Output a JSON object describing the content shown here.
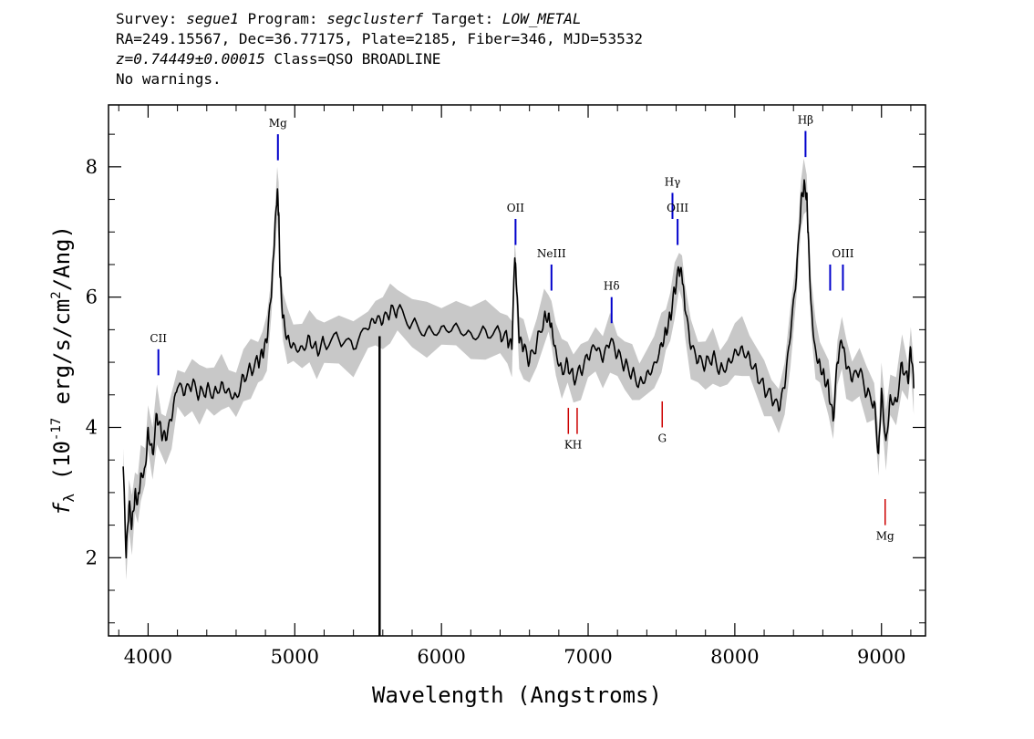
{
  "header": {
    "line1": {
      "survey_label": "Survey: ",
      "survey": "segue1",
      "program_label": " Program: ",
      "program": "segclusterf",
      "target_label": " Target: ",
      "target": "LOW_METAL"
    },
    "line2": "RA=249.15567, Dec=36.77175, Plate=2185, Fiber=346, MJD=53532",
    "line3": {
      "z": "z=0.74449±0.00015",
      "class": " Class=QSO BROADLINE"
    },
    "line4": "No warnings."
  },
  "chart_data": {
    "type": "line",
    "title": "",
    "xlabel": "Wavelength (Angstroms)",
    "ylabel_main": "f",
    "ylabel_sub": "λ",
    "ylabel_rest": " (10",
    "ylabel_exp": "-17",
    "ylabel_rest2": " erg/s/cm",
    "ylabel_exp2": "2",
    "ylabel_end": "/Ang)",
    "xlim": [
      3730,
      9300
    ],
    "ylim": [
      0.8,
      8.95
    ],
    "x_ticks": [
      4000,
      5000,
      6000,
      7000,
      8000,
      9000
    ],
    "x_tick_labels": [
      "4000",
      "5000",
      "6000",
      "7000",
      "8000",
      "9000"
    ],
    "y_ticks": [
      2,
      4,
      6,
      8
    ],
    "y_tick_labels": [
      "2",
      "4",
      "6",
      "8"
    ],
    "series": [
      {
        "color": "#000000",
        "x": [
          3830,
          3850,
          3870,
          3890,
          3910,
          3930,
          3950,
          3980,
          4000,
          4030,
          4060,
          4090,
          4120,
          4160,
          4200,
          4250,
          4300,
          4350,
          4400,
          4450,
          4500,
          4550,
          4600,
          4650,
          4700,
          4750,
          4780,
          4810,
          4840,
          4860,
          4880,
          4890,
          4900,
          4920,
          4950,
          4990,
          5050,
          5100,
          5150,
          5200,
          5300,
          5400,
          5500,
          5550,
          5600,
          5650,
          5700,
          5800,
          5900,
          6000,
          6100,
          6200,
          6300,
          6400,
          6450,
          6480,
          6500,
          6510,
          6530,
          6560,
          6600,
          6650,
          6700,
          6730,
          6750,
          6780,
          6820,
          6860,
          6900,
          6950,
          7000,
          7050,
          7100,
          7150,
          7200,
          7250,
          7300,
          7350,
          7400,
          7450,
          7500,
          7530,
          7560,
          7590,
          7620,
          7640,
          7660,
          7700,
          7750,
          7800,
          7850,
          7900,
          7950,
          8000,
          8050,
          8100,
          8150,
          8200,
          8250,
          8300,
          8340,
          8380,
          8420,
          8450,
          8470,
          8490,
          8500,
          8520,
          8550,
          8580,
          8610,
          8640,
          8670,
          8700,
          8730,
          8760,
          8800,
          8850,
          8900,
          8950,
          8980,
          9000,
          9030,
          9060,
          9100,
          9140,
          9180,
          9200,
          9220
        ],
        "y": [
          3.4,
          2.0,
          2.8,
          2.5,
          3.0,
          2.9,
          3.3,
          3.4,
          4.0,
          3.6,
          4.2,
          3.9,
          3.8,
          4.1,
          4.6,
          4.5,
          4.65,
          4.5,
          4.6,
          4.55,
          4.7,
          4.6,
          4.5,
          4.8,
          4.9,
          5.0,
          5.1,
          5.3,
          6.0,
          6.8,
          7.6,
          7.3,
          6.3,
          5.7,
          5.4,
          5.3,
          5.25,
          5.4,
          5.2,
          5.3,
          5.35,
          5.2,
          5.5,
          5.6,
          5.6,
          5.75,
          5.8,
          5.6,
          5.5,
          5.55,
          5.6,
          5.45,
          5.5,
          5.45,
          5.35,
          5.2,
          6.6,
          6.2,
          5.3,
          5.2,
          5.0,
          5.3,
          5.7,
          5.75,
          5.6,
          5.2,
          4.9,
          5.0,
          4.75,
          4.85,
          5.05,
          5.2,
          5.0,
          5.3,
          5.1,
          4.95,
          4.85,
          4.7,
          4.85,
          5.0,
          5.3,
          5.5,
          5.7,
          6.1,
          6.4,
          6.3,
          5.8,
          5.2,
          5.0,
          4.95,
          5.1,
          4.9,
          5.0,
          5.2,
          5.25,
          5.1,
          4.85,
          4.6,
          4.45,
          4.25,
          4.6,
          5.4,
          6.3,
          7.4,
          7.7,
          7.6,
          7.0,
          5.9,
          5.2,
          5.0,
          4.8,
          4.6,
          4.1,
          5.0,
          5.3,
          4.9,
          4.7,
          4.85,
          4.5,
          4.4,
          3.6,
          4.6,
          3.8,
          4.5,
          4.4,
          5.0,
          4.7,
          5.2,
          4.6
        ]
      },
      {
        "color": "#000000",
        "x": [
          5578,
          5578
        ],
        "y": [
          0.8,
          5.4
        ]
      }
    ],
    "line_markers": [
      {
        "label": "CII",
        "wavelength": 4070,
        "y_bottom": 4.8,
        "y_top": 5.2,
        "color": "#0000cc",
        "position": "above"
      },
      {
        "label": "Mg",
        "wavelength": 4885,
        "y_bottom": 8.1,
        "y_top": 8.5,
        "color": "#0000cc",
        "position": "above"
      },
      {
        "label": "OII",
        "wavelength": 6505,
        "y_bottom": 6.8,
        "y_top": 7.2,
        "color": "#0000cc",
        "position": "above"
      },
      {
        "label": "NeIII",
        "wavelength": 6750,
        "y_bottom": 6.1,
        "y_top": 6.5,
        "color": "#0000cc",
        "position": "above"
      },
      {
        "label": "Hδ",
        "wavelength": 7160,
        "y_bottom": 5.6,
        "y_top": 6.0,
        "color": "#0000cc",
        "position": "above"
      },
      {
        "label": "Hγ",
        "wavelength": 7575,
        "y_bottom": 7.2,
        "y_top": 7.6,
        "color": "#0000cc",
        "position": "above"
      },
      {
        "label": "OIII",
        "wavelength": 7610,
        "y_bottom": 6.8,
        "y_top": 7.2,
        "color": "#0000cc",
        "position": "above"
      },
      {
        "label": "Hβ",
        "wavelength": 8482,
        "y_bottom": 8.15,
        "y_top": 8.55,
        "color": "#0000cc",
        "position": "above"
      },
      {
        "label": "",
        "wavelength": 8650,
        "y_bottom": 6.1,
        "y_top": 6.5,
        "color": "#0000cc",
        "position": "above"
      },
      {
        "label": "OIII",
        "wavelength": 8737,
        "y_bottom": 6.1,
        "y_top": 6.5,
        "color": "#0000cc",
        "position": "above"
      },
      {
        "label": "K",
        "wavelength": 6865,
        "y_bottom": 3.9,
        "y_top": 4.3,
        "color": "#cc0000",
        "position": "below"
      },
      {
        "label": "H",
        "wavelength": 6925,
        "y_bottom": 3.9,
        "y_top": 4.3,
        "color": "#cc0000",
        "position": "below"
      },
      {
        "label": "G",
        "wavelength": 7505,
        "y_bottom": 4.0,
        "y_top": 4.4,
        "color": "#cc0000",
        "position": "below"
      },
      {
        "label": "Mg",
        "wavelength": 9025,
        "y_bottom": 2.5,
        "y_top": 2.9,
        "color": "#cc0000",
        "position": "below"
      }
    ],
    "grid": false,
    "legend": "none"
  },
  "colors": {
    "flux": "#000000",
    "error_band": "#c8c8c8",
    "emission": "#0000cc",
    "absorption": "#cc0000"
  }
}
